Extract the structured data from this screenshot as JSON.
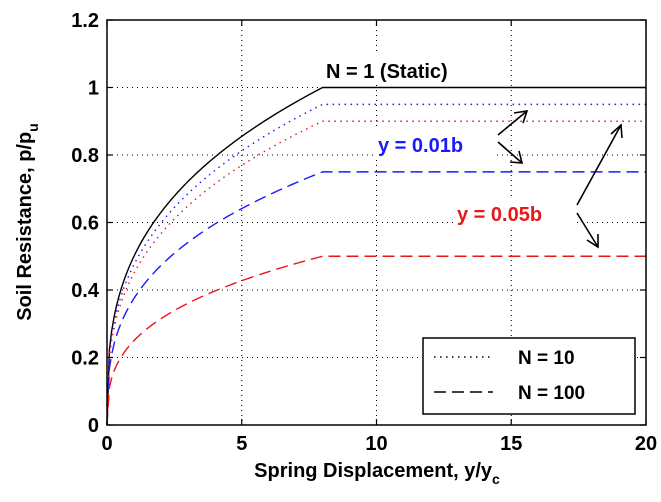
{
  "chart_data": {
    "type": "line",
    "xlabel": "Spring Displacement, y/y",
    "xlabel_sub": "c",
    "ylabel": "Soil Resistance, p/p",
    "ylabel_sub": "u",
    "xlim": [
      0,
      20
    ],
    "ylim": [
      0,
      1.2
    ],
    "x_ticks": [
      "0",
      "5",
      "10",
      "15",
      "20"
    ],
    "y_ticks": [
      "0",
      "0.2",
      "0.4",
      "0.6",
      "0.8",
      "1",
      "1.2"
    ],
    "grid": true,
    "legend_position": "bottom-right",
    "legend": [
      {
        "label": "N = 10",
        "style": "dotted"
      },
      {
        "label": "N = 100",
        "style": "dashed"
      }
    ],
    "annotations": {
      "static": "N = 1 (Static)",
      "y001": "y = 0.01b",
      "y005": "y = 0.05b"
    },
    "colors": {
      "static": "#000000",
      "y001": "#1a1aff",
      "y005": "#e81818"
    },
    "yield_x": 8,
    "series": [
      {
        "label": "N = 1 (Static)",
        "style": "solid",
        "color": "#000000",
        "plateau": 1.0
      },
      {
        "label": "N = 10, y = 0.01b",
        "style": "dotted",
        "color": "#1a1aff",
        "plateau": 0.95
      },
      {
        "label": "N = 10, y = 0.05b",
        "style": "dotted",
        "color": "#e81818",
        "plateau": 0.9
      },
      {
        "label": "N = 100, y = 0.01b",
        "style": "dashed",
        "color": "#1a1aff",
        "plateau": 0.75
      },
      {
        "label": "N = 100, y = 0.05b",
        "style": "dashed",
        "color": "#e81818",
        "plateau": 0.5
      }
    ]
  }
}
